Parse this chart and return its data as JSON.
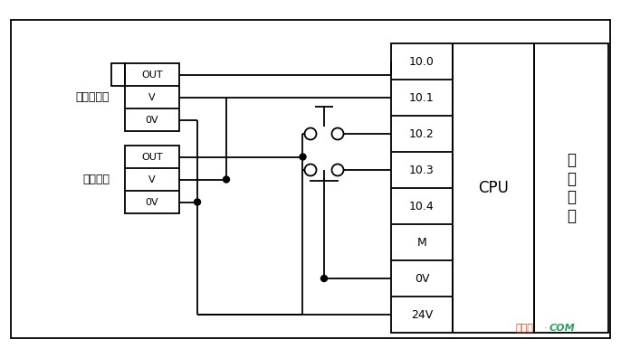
{
  "bg_color": "#ffffff",
  "line_color": "#000000",
  "watermark_color1": "#e8380d",
  "watermark_color2": "#2ca05a",
  "encoder_label": "光电编码器",
  "proximity_label": "接近开关",
  "cpu_label": "CPU",
  "terminal_labels": [
    "10.0",
    "10.1",
    "10.2",
    "10.3",
    "10.4",
    "M",
    "0V",
    "24V"
  ],
  "watermark_text1": "接线图",
  "watermark_text3": "COM"
}
